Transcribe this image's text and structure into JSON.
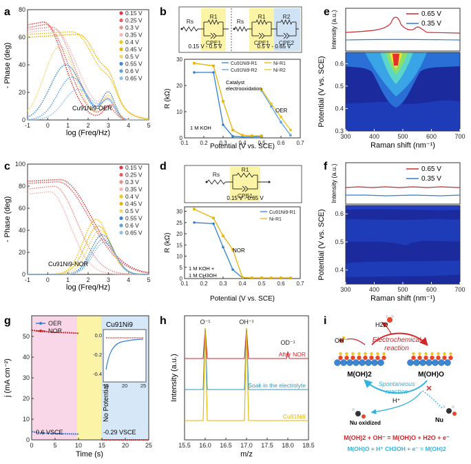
{
  "panels": {
    "a": {
      "letter": "a",
      "ylabel": "- Phase (deg)",
      "xlabel": "log (Freq/Hz)",
      "xticks": [
        "-1",
        "0",
        "1",
        "2",
        "3",
        "4",
        "5"
      ],
      "yticks": [
        "0",
        "20",
        "40",
        "60",
        "80"
      ],
      "note": "Cu91Ni9-OER",
      "legend": [
        "0.15 V",
        "0.25 V",
        "0.3 V",
        "0.35 V",
        "0.4 V",
        "0.45 V",
        "0.5 V",
        "0.55 V",
        "0.6 V",
        "0.65 V"
      ]
    },
    "b": {
      "letter": "b",
      "ylabel": "R (kΩ)",
      "xlabel": "Potential (V vs. SCE)",
      "xticks": [
        "0.1",
        "0.2",
        "0.3",
        "0.4",
        "0.5",
        "0.6",
        "0.7"
      ],
      "yticks": [
        "0",
        "10",
        "20",
        "30"
      ],
      "circuit_left": {
        "rs": "Rs",
        "r1": "R1",
        "cpe1": "CPE1",
        "range": "0.15 V - 0.5 V"
      },
      "circuit_right": {
        "rs": "Rs",
        "r1": "R1",
        "cpe1": "CPE1",
        "r2": "R2",
        "cpe2": "CPE2",
        "range": "0.5 V - 0.65 V"
      },
      "legend": [
        "Cu91Ni9-R1",
        "Ni-R1",
        "Cu91Ni9-R2",
        "Ni-R2"
      ],
      "annotations": {
        "catalyst": "Catalyst",
        "electrooxidation": "electrooxidation",
        "oer": "OER",
        "electrolyte": "1 M KOH"
      }
    },
    "c": {
      "letter": "c",
      "ylabel": "- Phase (deg)",
      "xlabel": "log (Freq/Hz)",
      "xticks": [
        "-1",
        "0",
        "1",
        "2",
        "3",
        "4",
        "5"
      ],
      "yticks": [
        "0",
        "20",
        "40",
        "60",
        "80",
        "100"
      ],
      "note": "Cu91Ni9-NOR",
      "legend": [
        "0.15 V",
        "0.25 V",
        "0.3 V",
        "0.35 V",
        "0.4 V",
        "0.45 V",
        "0.5 V",
        "0.55 V",
        "0.6 V",
        "0.65 V"
      ]
    },
    "d": {
      "letter": "d",
      "ylabel": "R (kΩ)",
      "xlabel": "Potential (V vs. SCE)",
      "xticks": [
        "0.1",
        "0.2",
        "0.3",
        "0.4",
        "0.5",
        "0.6",
        "0.7"
      ],
      "yticks": [
        "0",
        "5",
        "10",
        "15",
        "20",
        "25",
        "30"
      ],
      "circuit": {
        "rs": "Rs",
        "r1": "R1",
        "cpe1": "CPE1",
        "range": "0.15 V - 0.65 V"
      },
      "legend": [
        "Cu91Ni9-R1",
        "Ni-R1"
      ],
      "annotations": {
        "nor": "NOR",
        "electrolyte1": "1 M KOH +",
        "electrolyte2": "1 M CH3OH"
      }
    },
    "e": {
      "letter": "e",
      "ylabel_top": "Intensity (a.u.)",
      "ylabel": "Potential (V vs. SCE)",
      "xlabel": "Raman shift (nm⁻¹)",
      "xticks": [
        "300",
        "400",
        "500",
        "600",
        "700"
      ],
      "yticks": [
        "0.3",
        "0.4",
        "0.5",
        "0.6"
      ],
      "legend": [
        "0.65 V",
        "0.35 V"
      ]
    },
    "f": {
      "letter": "f",
      "ylabel_top": "Intensity (a.u.)",
      "ylabel": "Potential (V vs. SCE)",
      "xlabel": "Raman shift (nm⁻¹)",
      "xticks": [
        "300",
        "400",
        "500",
        "600",
        "700"
      ],
      "yticks": [
        "0.4",
        "0.5",
        "0.6"
      ],
      "legend": [
        "0.65 V",
        "0.35 V"
      ]
    },
    "g": {
      "letter": "g",
      "ylabel": "j (mA cm⁻²)",
      "xlabel": "Time (s)",
      "xticks": [
        "0",
        "5",
        "10",
        "15",
        "20",
        "25"
      ],
      "yticks": [
        "0",
        "10",
        "20",
        "30",
        "40",
        "50"
      ],
      "legend": [
        "OER",
        "NOR"
      ],
      "title": "Cu91Ni9",
      "region1": "0.6 VSCE",
      "region2": "No Potential",
      "region3": "-0.29 VSCE",
      "inset_xticks": [
        "15",
        "20",
        "25"
      ],
      "inset_yticks": [
        "0.0",
        "-0.2",
        "-0.4"
      ]
    },
    "h": {
      "letter": "h",
      "ylabel": "Intensity (a.u.)",
      "xlabel": "m/z",
      "xticks": [
        "15.5",
        "16.0",
        "16.5",
        "17.0",
        "17.5",
        "18.0",
        "18.5"
      ],
      "peaks": [
        "O⁻¹",
        "OH⁻¹",
        "OD⁻¹"
      ],
      "traces": [
        "After NOR",
        "Soak in the electrolyte",
        "Cu91Ni9"
      ]
    },
    "i": {
      "letter": "i",
      "h2o": "H2O",
      "oh": "OH⁻",
      "electrochemical": "Electrochemical",
      "reaction": "reaction",
      "m_oh2": "M(OH)2",
      "m_oho": "M(OH)O",
      "spontaneous": "Spontaneous",
      "reaction2": "reaction",
      "hplus": "H⁺",
      "nu_ox": "Nu oxidized",
      "nu": "Nu",
      "eq1": "M(OH)2 + OH⁻ = M(OH)O + H2O + e⁻",
      "eq2": "M(OH)O + H⁺ CH3OH + e⁻ = M(OH)2"
    }
  },
  "chart_data": [
    {
      "type": "line",
      "panel": "b",
      "title": "",
      "xlabel": "Potential (V vs. SCE)",
      "ylabel": "R (kΩ)",
      "xlim": [
        0.1,
        0.7
      ],
      "ylim": [
        0,
        30
      ],
      "series": [
        {
          "name": "Cu91Ni9-R1",
          "x": [
            0.15,
            0.25,
            0.3,
            0.35,
            0.4,
            0.45,
            0.5
          ],
          "values": [
            25,
            25,
            5,
            0.6,
            0.4,
            0.4,
            0.5
          ]
        },
        {
          "name": "Ni-R1",
          "x": [
            0.15,
            0.25,
            0.3,
            0.35,
            0.4,
            0.45,
            0.5
          ],
          "values": [
            28.5,
            27.5,
            14,
            3,
            1,
            0.8,
            0.8
          ]
        },
        {
          "name": "Cu91Ni9-R2",
          "x": [
            0.5,
            0.55,
            0.6,
            0.65
          ],
          "values": [
            18,
            12,
            6,
            1
          ]
        },
        {
          "name": "Ni-R2",
          "x": [
            0.5,
            0.55,
            0.6,
            0.65
          ],
          "values": [
            18.5,
            13,
            8,
            3
          ]
        }
      ]
    },
    {
      "type": "line",
      "panel": "d",
      "title": "",
      "xlabel": "Potential (V vs. SCE)",
      "ylabel": "R (kΩ)",
      "xlim": [
        0.1,
        0.7
      ],
      "ylim": [
        0,
        32
      ],
      "series": [
        {
          "name": "Cu91Ni9-R1",
          "x": [
            0.15,
            0.25,
            0.3,
            0.35,
            0.4,
            0.45,
            0.5,
            0.55,
            0.6,
            0.65
          ],
          "values": [
            25,
            24.5,
            14,
            4,
            0.3,
            0.2,
            0.2,
            0.2,
            0.2,
            0.2
          ]
        },
        {
          "name": "Ni-R1",
          "x": [
            0.15,
            0.25,
            0.3,
            0.35,
            0.4,
            0.45,
            0.5,
            0.55,
            0.6,
            0.65
          ],
          "values": [
            31,
            27,
            19,
            13,
            0.5,
            0.3,
            0.3,
            0.3,
            0.3,
            0.3
          ]
        }
      ]
    },
    {
      "type": "line",
      "panel": "g",
      "title": "Cu91Ni9",
      "xlabel": "Time (s)",
      "ylabel": "j (mA cm-2)",
      "xlim": [
        0,
        25
      ],
      "ylim": [
        0,
        60
      ],
      "series": [
        {
          "name": "OER",
          "x": [
            0,
            2,
            5,
            8,
            10,
            15,
            18,
            21,
            25
          ],
          "values": [
            4,
            3.3,
            3,
            2.9,
            2.8,
            0,
            0,
            0,
            0
          ]
        },
        {
          "name": "NOR",
          "x": [
            0,
            2,
            5,
            8,
            10,
            15,
            18,
            21,
            25
          ],
          "values": [
            53,
            52.5,
            52,
            51.8,
            51.5,
            0,
            0,
            0,
            0
          ]
        }
      ]
    },
    {
      "type": "line",
      "panel": "h",
      "title": "",
      "xlabel": "m/z",
      "ylabel": "Intensity (a.u.)",
      "xlim": [
        15.5,
        18.5
      ],
      "series": [
        {
          "name": "After NOR",
          "x": [
            16.0,
            17.0,
            18.0
          ],
          "values": [
            1,
            1,
            0.15
          ]
        },
        {
          "name": "Soak in the electrolyte",
          "x": [
            16.0,
            17.0
          ],
          "values": [
            1,
            1
          ]
        },
        {
          "name": "Cu91Ni9",
          "x": [
            16.0,
            17.0
          ],
          "values": [
            1,
            1
          ]
        }
      ]
    }
  ]
}
